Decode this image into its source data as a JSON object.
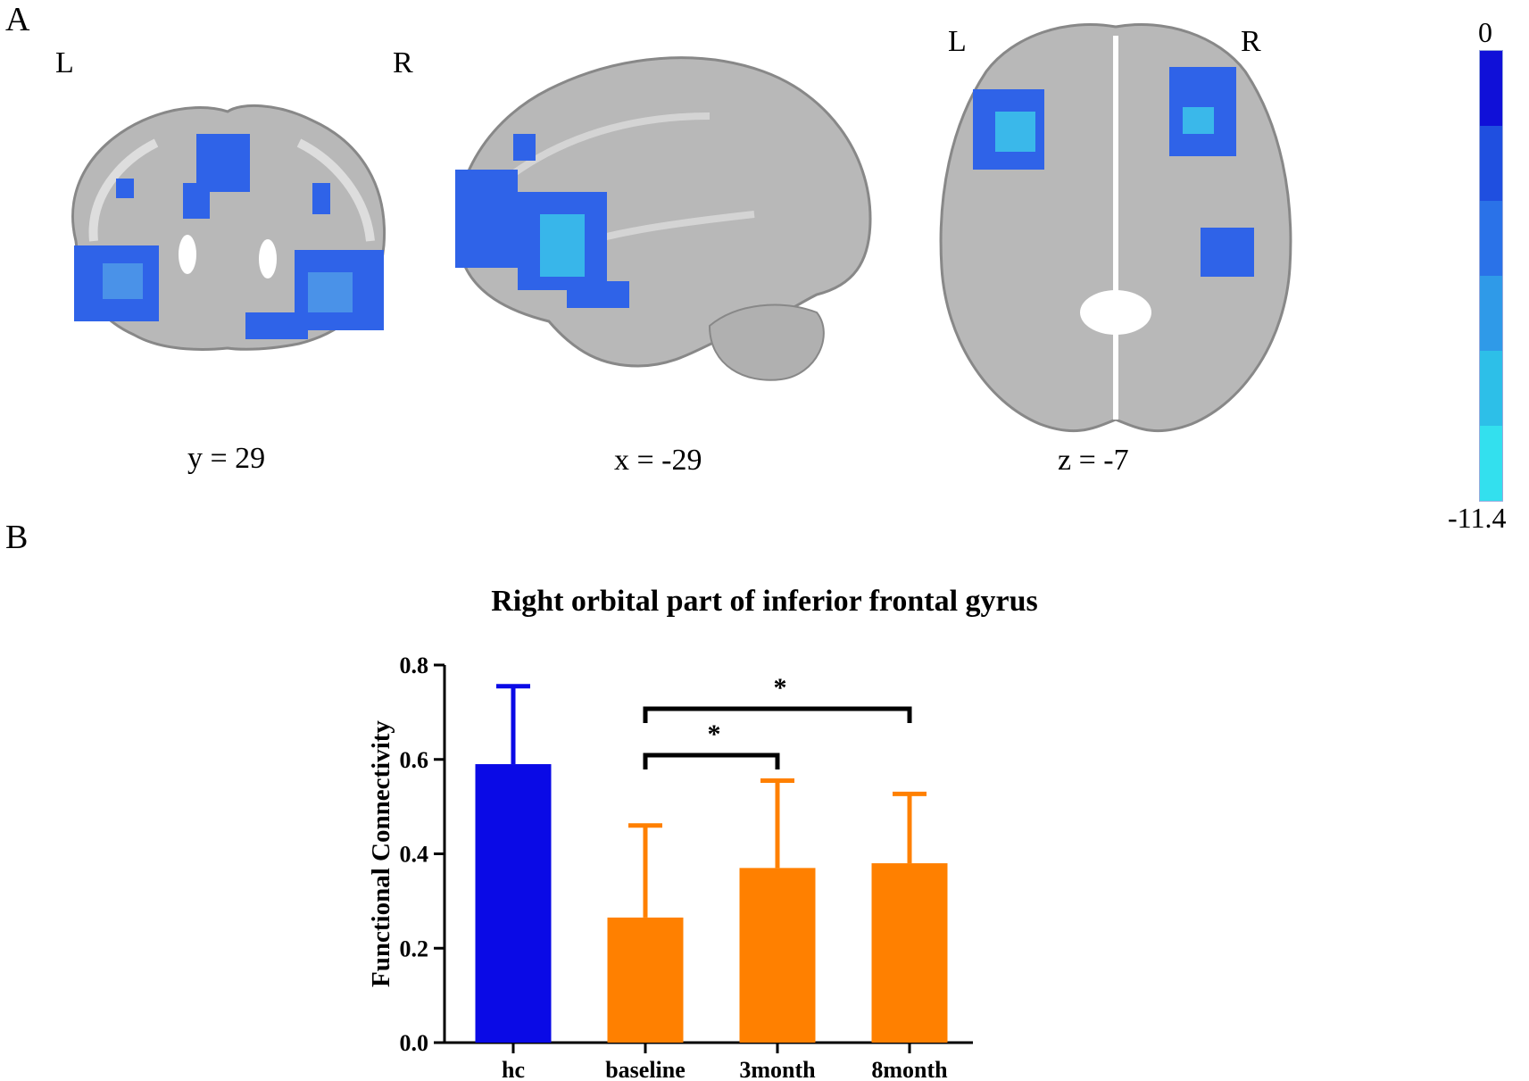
{
  "panel_a": {
    "label": "A",
    "views": [
      {
        "coord": "y = 29",
        "left": "L",
        "right": "R"
      },
      {
        "coord": "x = -29"
      },
      {
        "coord": "z = -7",
        "left": "L",
        "right": "R"
      }
    ],
    "colorbar": {
      "max_label": "0",
      "min_label": "-11.4",
      "colors": [
        "#1010d8",
        "#1f4fe0",
        "#2a72e8",
        "#2f9ae8",
        "#2dbfe8",
        "#33e0ee"
      ]
    }
  },
  "panel_b": {
    "label": "B"
  },
  "colors": {
    "hc": "#0a0ae6",
    "patient": "#ff8000",
    "activation_strong": "#2f63e8",
    "activation_weak": "#35c8ea",
    "brain": "#b8b8b8"
  },
  "chart_data": {
    "type": "bar",
    "title": "Right orbital part of inferior frontal gyrus",
    "ylabel": "Functional Connectivity",
    "xlabel": "",
    "categories": [
      "hc",
      "baseline",
      "3month",
      "8month"
    ],
    "values": [
      0.59,
      0.265,
      0.37,
      0.38
    ],
    "error_upper": [
      0.755,
      0.46,
      0.555,
      0.527
    ],
    "bar_colors": [
      "#0a0ae6",
      "#ff8000",
      "#ff8000",
      "#ff8000"
    ],
    "ylim": [
      0,
      0.8
    ],
    "yticks": [
      "0.0",
      "0.2",
      "0.4",
      "0.6",
      "0.8"
    ],
    "significance": [
      {
        "from": "baseline",
        "to": "3month",
        "label": "*"
      },
      {
        "from": "baseline",
        "to": "8month",
        "label": "*"
      }
    ]
  }
}
